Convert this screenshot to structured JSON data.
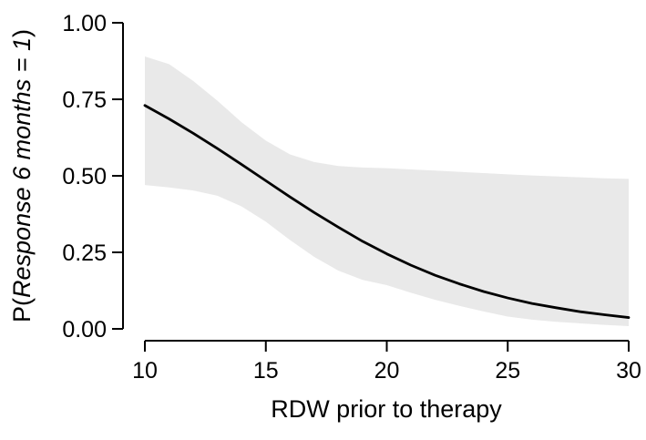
{
  "chart_data": {
    "type": "line",
    "xlabel": "RDW prior to therapy",
    "ylabel": "P(Response 6 months = 1)",
    "ylabel_parts": {
      "prefix": "P(",
      "italic": "Response 6 months = 1",
      "suffix": ")"
    },
    "xlim": [
      10,
      30
    ],
    "ylim": [
      0,
      1
    ],
    "grid": false,
    "legend_position": "none",
    "x_ticks": [
      {
        "value": 10,
        "label": "10"
      },
      {
        "value": 15,
        "label": "15"
      },
      {
        "value": 20,
        "label": "20"
      },
      {
        "value": 25,
        "label": "25"
      },
      {
        "value": 30,
        "label": "30"
      }
    ],
    "y_ticks": [
      {
        "value": 0.0,
        "label": "0.00"
      },
      {
        "value": 0.25,
        "label": "0.25"
      },
      {
        "value": 0.5,
        "label": "0.50"
      },
      {
        "value": 0.75,
        "label": "0.75"
      },
      {
        "value": 1.0,
        "label": "1.00"
      }
    ],
    "x": [
      10,
      11,
      12,
      13,
      14,
      15,
      16,
      17,
      18,
      19,
      20,
      21,
      22,
      23,
      24,
      25,
      26,
      27,
      28,
      29,
      30
    ],
    "series": [
      {
        "name": "predicted_probability",
        "role": "fit-line",
        "values": [
          0.73,
          0.686,
          0.639,
          0.589,
          0.537,
          0.484,
          0.431,
          0.38,
          0.332,
          0.286,
          0.245,
          0.208,
          0.175,
          0.147,
          0.122,
          0.101,
          0.083,
          0.069,
          0.056,
          0.046,
          0.037
        ]
      },
      {
        "name": "ci_upper",
        "role": "confidence-band-upper",
        "values": [
          0.89,
          0.865,
          0.81,
          0.745,
          0.675,
          0.615,
          0.57,
          0.545,
          0.532,
          0.527,
          0.525,
          0.521,
          0.517,
          0.513,
          0.509,
          0.505,
          0.501,
          0.498,
          0.495,
          0.492,
          0.49
        ]
      },
      {
        "name": "ci_lower",
        "role": "confidence-band-lower",
        "values": [
          0.47,
          0.462,
          0.452,
          0.435,
          0.4,
          0.35,
          0.29,
          0.235,
          0.19,
          0.16,
          0.143,
          0.118,
          0.095,
          0.075,
          0.057,
          0.04,
          0.03,
          0.023,
          0.018,
          0.013,
          0.009
        ]
      }
    ],
    "colors": {
      "line": "#000000",
      "band": "#e9e9e9",
      "axis": "#000000",
      "background": "#ffffff"
    }
  }
}
